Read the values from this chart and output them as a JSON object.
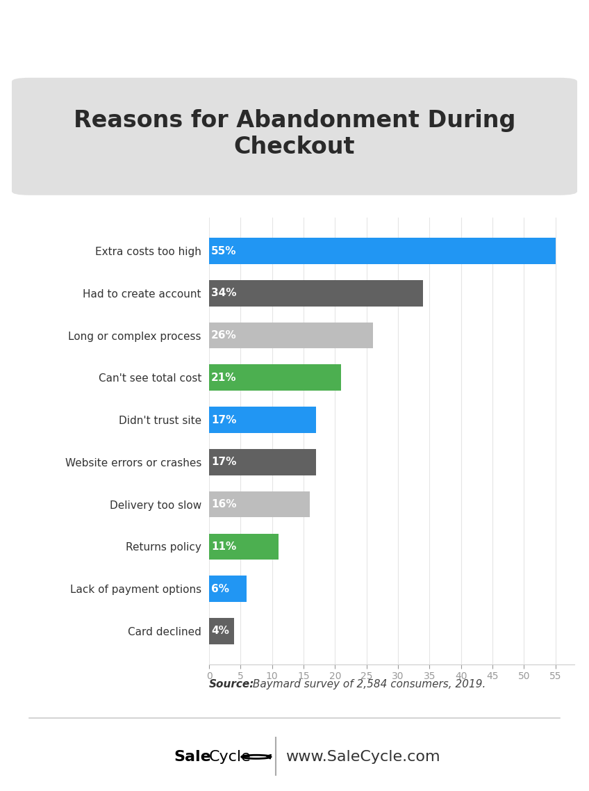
{
  "title": "Reasons for Abandonment During\nCheckout",
  "categories": [
    "Extra costs too high",
    "Had to create account",
    "Long or complex process",
    "Can't see total cost",
    "Didn't trust site",
    "Website errors or crashes",
    "Delivery too slow",
    "Returns policy",
    "Lack of payment options",
    "Card declined"
  ],
  "values": [
    55,
    34,
    26,
    21,
    17,
    17,
    16,
    11,
    6,
    4
  ],
  "labels": [
    "55%",
    "34%",
    "26%",
    "21%",
    "17%",
    "17%",
    "16%",
    "11%",
    "6%",
    "4%"
  ],
  "colors": [
    "#2196F3",
    "#616161",
    "#BDBDBD",
    "#4CAF50",
    "#2196F3",
    "#616161",
    "#BDBDBD",
    "#4CAF50",
    "#2196F3",
    "#616161"
  ],
  "xlim": [
    0,
    58
  ],
  "xticks": [
    0,
    5,
    10,
    15,
    20,
    25,
    30,
    35,
    40,
    45,
    50,
    55
  ],
  "title_bg_color": "#E0E0E0",
  "source_bold": "Source:",
  "source_text": " Baymard survey of 2,584 consumers, 2019.",
  "title_fontsize": 24,
  "bar_label_fontsize": 11,
  "category_fontsize": 11,
  "tick_fontsize": 10,
  "source_fontsize": 11,
  "footer_fontsize": 15
}
